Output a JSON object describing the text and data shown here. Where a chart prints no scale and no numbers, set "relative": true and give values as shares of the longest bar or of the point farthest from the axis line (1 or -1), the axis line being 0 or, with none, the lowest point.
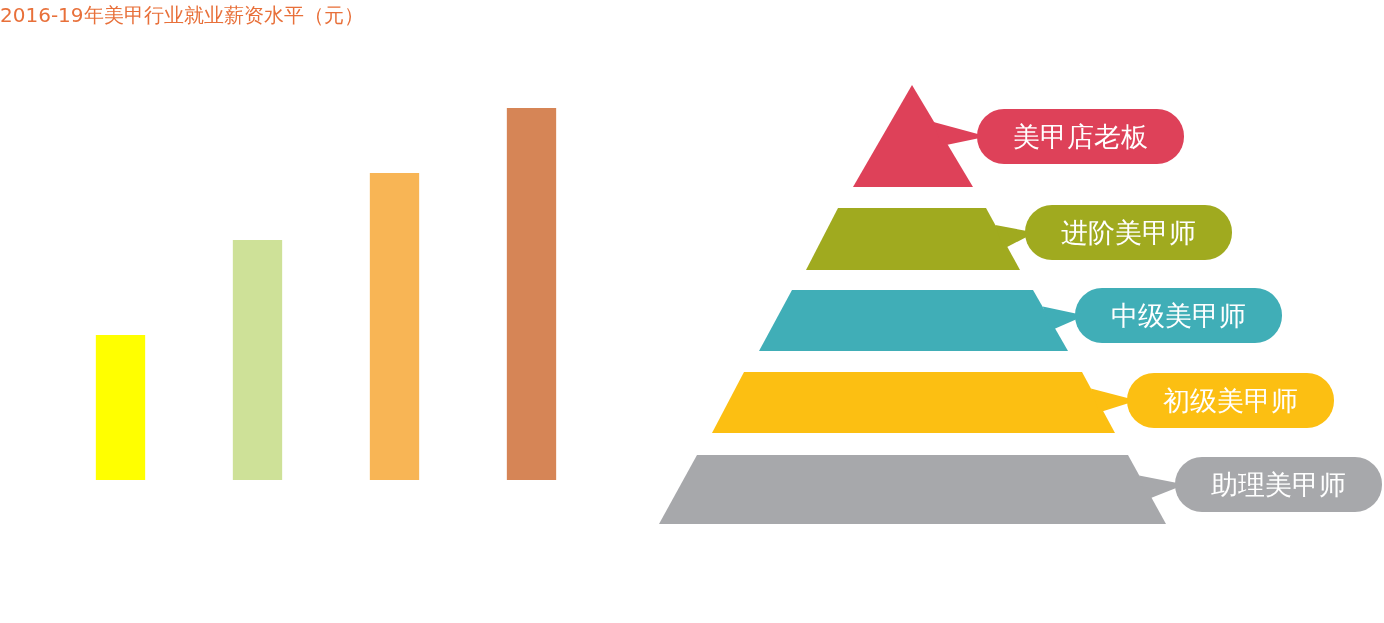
{
  "chart_data": [
    {
      "type": "bar",
      "title": "2016-19年美甲行业就业薪资水平（元）",
      "relative": true,
      "categories": [
        null,
        null,
        null,
        null
      ],
      "values": [
        0.39,
        0.645,
        0.825,
        1
      ],
      "colors": [
        "#ffff00",
        "#cee198",
        "#f8b555",
        "#d68556"
      ]
    },
    {
      "type": "other",
      "annotations": [
        "美甲店老板",
        "进阶美甲师",
        "中级美甲师",
        "初级美甲师",
        "助理美甲师"
      ],
      "colors": [
        "#de4159",
        "#a0aa1f",
        "#40aeb7",
        "#fcbf12",
        "#a7a8ab"
      ]
    }
  ]
}
